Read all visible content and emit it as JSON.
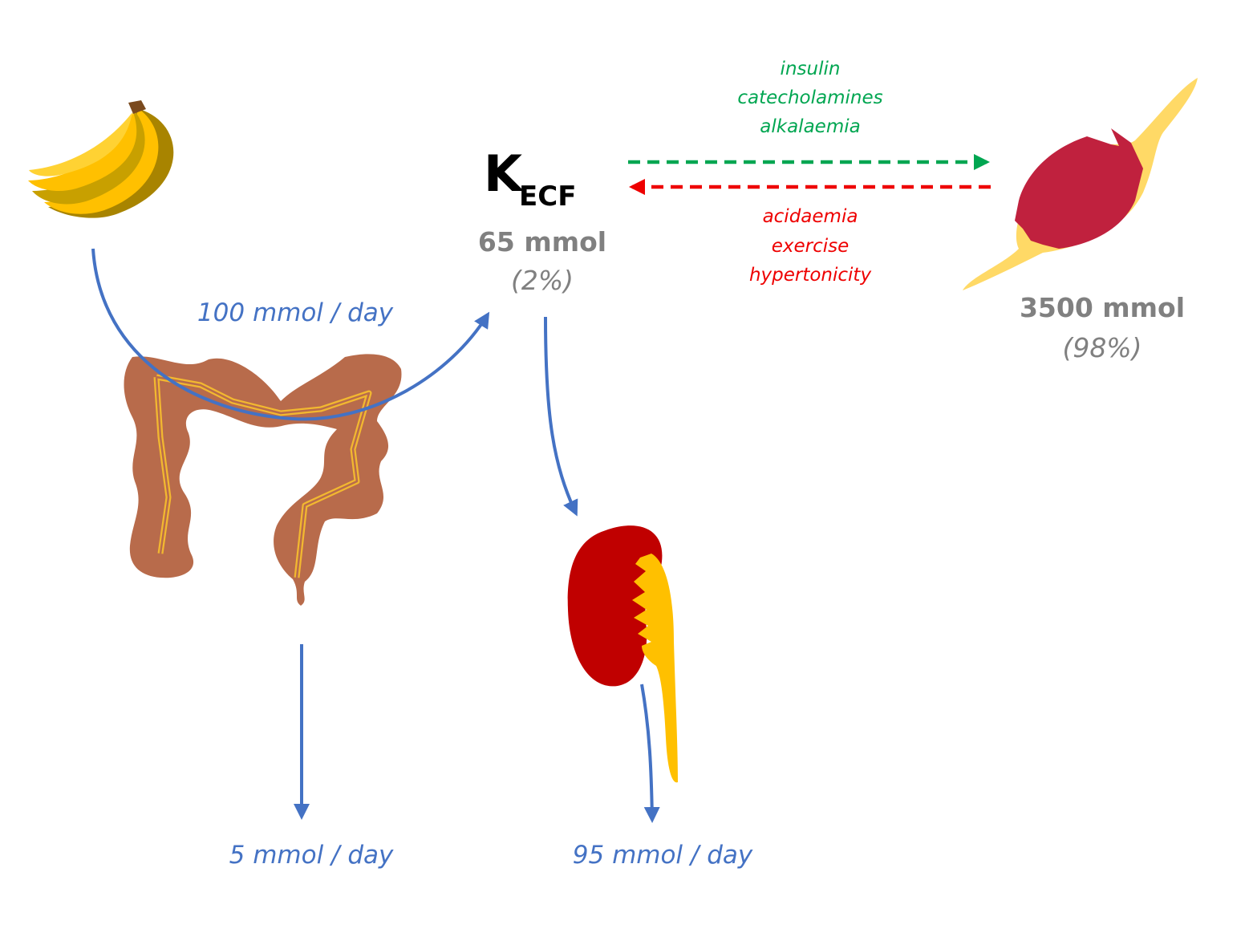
{
  "ecf": {
    "symbol": "K",
    "subscript": "ECF",
    "amount": "65 mmol",
    "percent": "(2%)"
  },
  "intracellular": {
    "amount": "3500 mmol",
    "percent": "(98%)"
  },
  "flows": {
    "intake": "100 mmol / day",
    "faecal_loss": "5 mmol / day",
    "renal_loss": "95 mmol / day"
  },
  "shift_into_cells": [
    "insulin",
    "catecholamines",
    "alkalaemia"
  ],
  "shift_out_of_cells": [
    "acidaemia",
    "exercise",
    "hypertonicity"
  ],
  "colors": {
    "flow_arrow": "#4472C4",
    "into_cells": "#00A651",
    "out_of_cells": "#EE0000",
    "muscle": "#C0213E",
    "tendon": "#FFD966",
    "kidney": "#C00000",
    "ureter": "#FFC000",
    "bowel": "#B86B4B",
    "banana": "#FFC000"
  },
  "icons": [
    "banana-icon",
    "bowel-icon",
    "kidney-icon",
    "muscle-icon"
  ]
}
